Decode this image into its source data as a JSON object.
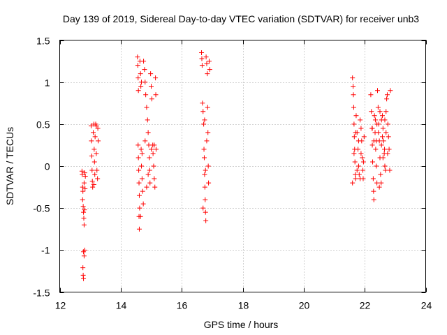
{
  "chart_data": {
    "type": "scatter",
    "title": "Day 139 of 2019, Sidereal Day-to-day VTEC variation (SDTVAR) for receiver unb3",
    "xlabel": "GPS time / hours",
    "ylabel": "SDTVAR / TECUs",
    "xlim": [
      12,
      24
    ],
    "ylim": [
      -1.5,
      1.5
    ],
    "xticks": [
      "12",
      "14",
      "16",
      "18",
      "20",
      "22",
      "24"
    ],
    "yticks": [
      "1.5",
      "1",
      "0.5",
      "0",
      "-0.5",
      "-1",
      "-1.5"
    ],
    "xtick_values": [
      12,
      14,
      16,
      18,
      20,
      22,
      24
    ],
    "ytick_values": [
      1.5,
      1,
      0.5,
      0,
      -0.5,
      -1,
      -1.5
    ],
    "grid": true,
    "marker": "+",
    "colors": {
      "series": "#ff0000",
      "grid": "#a0a0a0",
      "axes": "#000000"
    },
    "series": [
      {
        "name": "SDTVAR",
        "points": [
          [
            12.73,
            -0.06
          ],
          [
            12.74,
            -0.1
          ],
          [
            12.75,
            -0.25
          ],
          [
            12.76,
            -0.3
          ],
          [
            12.77,
            -0.48
          ],
          [
            12.78,
            -0.55
          ],
          [
            12.79,
            -0.62
          ],
          [
            12.8,
            -0.7
          ],
          [
            12.81,
            -0.52
          ],
          [
            12.8,
            -0.2
          ],
          [
            12.82,
            -0.08
          ],
          [
            12.78,
            -1.02
          ],
          [
            12.8,
            -1.07
          ],
          [
            12.82,
            -1.0
          ],
          [
            12.76,
            -1.21
          ],
          [
            12.77,
            -1.3
          ],
          [
            12.78,
            -1.34
          ],
          [
            12.83,
            -0.27
          ],
          [
            12.75,
            -0.4
          ],
          [
            12.84,
            -0.12
          ],
          [
            13.03,
            0.48
          ],
          [
            13.04,
            0.3
          ],
          [
            13.05,
            0.12
          ],
          [
            13.06,
            -0.05
          ],
          [
            13.07,
            -0.18
          ],
          [
            13.08,
            -0.25
          ],
          [
            13.1,
            0.4
          ],
          [
            13.12,
            0.5
          ],
          [
            13.13,
            0.2
          ],
          [
            13.14,
            0.05
          ],
          [
            13.15,
            -0.1
          ],
          [
            13.16,
            0.35
          ],
          [
            13.18,
            0.5
          ],
          [
            13.2,
            0.15
          ],
          [
            13.22,
            -0.05
          ],
          [
            13.24,
            -0.15
          ],
          [
            13.25,
            0.45
          ],
          [
            13.26,
            0.3
          ],
          [
            13.12,
            -0.22
          ],
          [
            13.2,
            0.48
          ],
          [
            14.55,
            1.3
          ],
          [
            14.56,
            1.2
          ],
          [
            14.57,
            1.05
          ],
          [
            14.58,
            0.9
          ],
          [
            14.57,
            0.25
          ],
          [
            14.58,
            0.1
          ],
          [
            14.59,
            -0.05
          ],
          [
            14.6,
            -0.2
          ],
          [
            14.61,
            -0.35
          ],
          [
            14.62,
            -0.5
          ],
          [
            14.6,
            -0.6
          ],
          [
            14.61,
            -0.75
          ],
          [
            14.63,
            1.25
          ],
          [
            14.65,
            1.1
          ],
          [
            14.66,
            0.95
          ],
          [
            14.67,
            0.2
          ],
          [
            14.68,
            0.0
          ],
          [
            14.7,
            -0.15
          ],
          [
            14.72,
            -0.3
          ],
          [
            14.74,
            -0.45
          ],
          [
            14.75,
            1.25
          ],
          [
            14.78,
            1.15
          ],
          [
            14.8,
            1.0
          ],
          [
            14.82,
            0.85
          ],
          [
            14.85,
            0.7
          ],
          [
            14.88,
            0.55
          ],
          [
            14.9,
            0.4
          ],
          [
            14.92,
            0.25
          ],
          [
            14.94,
            0.1
          ],
          [
            14.95,
            -0.05
          ],
          [
            14.96,
            -0.2
          ],
          [
            14.98,
            1.1
          ],
          [
            15.0,
            0.95
          ],
          [
            15.02,
            0.8
          ],
          [
            15.05,
            0.25
          ],
          [
            15.06,
            0.15
          ],
          [
            15.08,
            0.0
          ],
          [
            15.1,
            -0.15
          ],
          [
            15.12,
            -0.25
          ],
          [
            15.14,
            1.05
          ],
          [
            15.15,
            0.85
          ],
          [
            15.16,
            0.2
          ],
          [
            14.65,
            -0.6
          ],
          [
            14.7,
            0.15
          ],
          [
            14.85,
            -0.25
          ],
          [
            15.0,
            0.2
          ],
          [
            15.1,
            0.25
          ],
          [
            14.9,
            -0.1
          ],
          [
            14.68,
            1.0
          ],
          [
            14.8,
            0.3
          ],
          [
            16.65,
            1.35
          ],
          [
            16.66,
            1.28
          ],
          [
            16.67,
            1.2
          ],
          [
            16.68,
            0.75
          ],
          [
            16.7,
            0.65
          ],
          [
            16.72,
            0.5
          ],
          [
            16.73,
            0.2
          ],
          [
            16.74,
            0.1
          ],
          [
            16.75,
            -0.1
          ],
          [
            16.76,
            -0.25
          ],
          [
            16.77,
            -0.4
          ],
          [
            16.78,
            -0.55
          ],
          [
            16.79,
            -0.65
          ],
          [
            16.8,
            1.3
          ],
          [
            16.82,
            1.22
          ],
          [
            16.84,
            1.1
          ],
          [
            16.85,
            0.7
          ],
          [
            16.86,
            0.4
          ],
          [
            16.87,
            0.0
          ],
          [
            16.88,
            -0.2
          ],
          [
            16.9,
            1.25
          ],
          [
            16.92,
            1.15
          ],
          [
            16.7,
            -0.5
          ],
          [
            16.75,
            0.55
          ],
          [
            16.82,
            0.3
          ],
          [
            16.78,
            -0.05
          ],
          [
            21.6,
            1.05
          ],
          [
            21.62,
            0.95
          ],
          [
            21.63,
            0.85
          ],
          [
            21.64,
            0.7
          ],
          [
            21.65,
            0.5
          ],
          [
            21.66,
            0.35
          ],
          [
            21.67,
            0.2
          ],
          [
            21.68,
            0.05
          ],
          [
            21.69,
            -0.1
          ],
          [
            21.7,
            -0.15
          ],
          [
            21.72,
            0.6
          ],
          [
            21.75,
            0.4
          ],
          [
            21.78,
            0.2
          ],
          [
            21.8,
            0.0
          ],
          [
            21.82,
            -0.1
          ],
          [
            21.85,
            0.55
          ],
          [
            21.88,
            0.45
          ],
          [
            21.9,
            0.3
          ],
          [
            21.92,
            0.1
          ],
          [
            21.94,
            -0.05
          ],
          [
            21.95,
            -0.15
          ],
          [
            21.98,
            0.35
          ],
          [
            21.6,
            -0.2
          ],
          [
            21.75,
            -0.05
          ],
          [
            21.88,
            0.15
          ],
          [
            21.65,
            0.15
          ],
          [
            21.8,
            0.3
          ],
          [
            21.96,
            0.05
          ],
          [
            21.7,
            0.4
          ],
          [
            21.85,
            -0.15
          ],
          [
            22.2,
            0.85
          ],
          [
            22.22,
            0.65
          ],
          [
            22.24,
            0.45
          ],
          [
            22.25,
            0.25
          ],
          [
            22.26,
            0.05
          ],
          [
            22.28,
            -0.15
          ],
          [
            22.29,
            -0.3
          ],
          [
            22.3,
            -0.4
          ],
          [
            22.32,
            0.6
          ],
          [
            22.34,
            0.4
          ],
          [
            22.36,
            0.2
          ],
          [
            22.38,
            0.0
          ],
          [
            22.4,
            -0.2
          ],
          [
            22.42,
            0.9
          ],
          [
            22.44,
            0.7
          ],
          [
            22.46,
            0.5
          ],
          [
            22.48,
            0.3
          ],
          [
            22.5,
            0.1
          ],
          [
            22.52,
            -0.1
          ],
          [
            22.54,
            -0.2
          ],
          [
            22.55,
            0.55
          ],
          [
            22.58,
            0.6
          ],
          [
            22.6,
            0.45
          ],
          [
            22.62,
            0.3
          ],
          [
            22.64,
            0.15
          ],
          [
            22.66,
            0.0
          ],
          [
            22.68,
            -0.05
          ],
          [
            22.7,
            0.65
          ],
          [
            22.72,
            0.8
          ],
          [
            22.74,
            0.85
          ],
          [
            22.76,
            0.5
          ],
          [
            22.78,
            0.35
          ],
          [
            22.8,
            0.2
          ],
          [
            22.82,
            -0.05
          ],
          [
            22.84,
            0.9
          ],
          [
            22.35,
            0.55
          ],
          [
            22.45,
            0.4
          ],
          [
            22.55,
            0.25
          ],
          [
            22.65,
            0.2
          ],
          [
            22.5,
            0.65
          ],
          [
            22.4,
            0.5
          ],
          [
            22.3,
            0.3
          ],
          [
            22.6,
            0.1
          ],
          [
            22.7,
            0.4
          ],
          [
            22.25,
            0.45
          ],
          [
            22.48,
            -0.25
          ],
          [
            22.38,
            0.3
          ],
          [
            22.58,
            0.35
          ],
          [
            22.75,
            0.15
          ],
          [
            22.66,
            0.55
          ]
        ]
      }
    ]
  }
}
